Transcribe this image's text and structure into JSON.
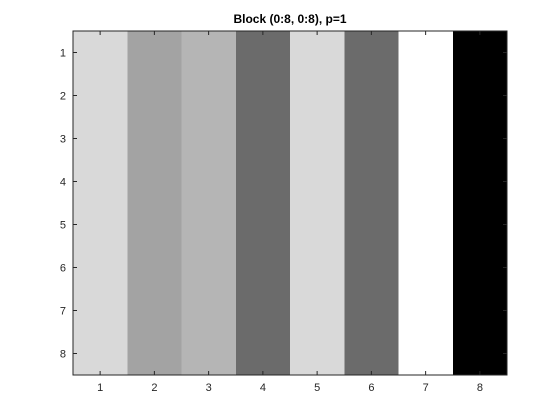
{
  "chart_data": {
    "type": "heatmap",
    "title": "Block (0:8, 0:8), p=1",
    "xlabel": "",
    "ylabel": "",
    "x_ticks": [
      "1",
      "2",
      "3",
      "4",
      "5",
      "6",
      "7",
      "8"
    ],
    "y_ticks": [
      "1",
      "2",
      "3",
      "4",
      "5",
      "6",
      "7",
      "8"
    ],
    "xlim": [
      0.5,
      8.5
    ],
    "ylim": [
      0.5,
      8.5
    ],
    "y_direction": "reverse",
    "colormap": "gray",
    "columns": [
      {
        "x": 1,
        "color": "#d9d9d9"
      },
      {
        "x": 2,
        "color": "#a3a3a3"
      },
      {
        "x": 3,
        "color": "#b5b5b5"
      },
      {
        "x": 4,
        "color": "#6b6b6b"
      },
      {
        "x": 5,
        "color": "#d9d9d9"
      },
      {
        "x": 6,
        "color": "#6b6b6b"
      },
      {
        "x": 7,
        "color": "#ffffff"
      },
      {
        "x": 8,
        "color": "#000000"
      }
    ],
    "rows": 8,
    "grid": false,
    "legend": "none"
  }
}
